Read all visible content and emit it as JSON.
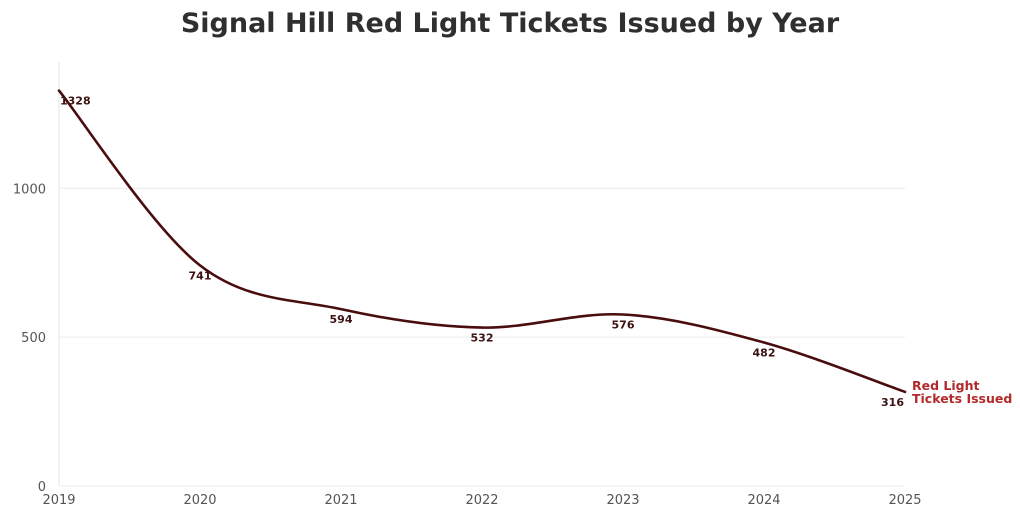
{
  "title": "Signal Hill Red Light Tickets Issued by Year",
  "chart_data": {
    "type": "line",
    "title": "Signal Hill Red Light Tickets Issued by Year",
    "xlabel": "",
    "ylabel": "",
    "x": [
      2019,
      2020,
      2021,
      2022,
      2023,
      2024,
      2025
    ],
    "series": [
      {
        "name": "Red Light Tickets Issued",
        "name_lines": [
          "Red Light",
          "Tickets Issued"
        ],
        "values": [
          1328,
          741,
          594,
          532,
          576,
          482,
          316
        ],
        "color": "#4a0d0d",
        "label_color": "#b22a2a"
      }
    ],
    "data_labels": [
      "1328",
      "741",
      "594",
      "532",
      "576",
      "482",
      "316"
    ],
    "x_ticks": [
      "2019",
      "2020",
      "2021",
      "2022",
      "2023",
      "2024",
      "2025"
    ],
    "y_ticks": [
      0,
      500,
      1000
    ],
    "y_tick_labels": [
      "0",
      "500",
      "1000"
    ],
    "xlim": [
      2019,
      2025
    ],
    "ylim": [
      0,
      1330
    ],
    "grid": true,
    "smooth": true
  }
}
